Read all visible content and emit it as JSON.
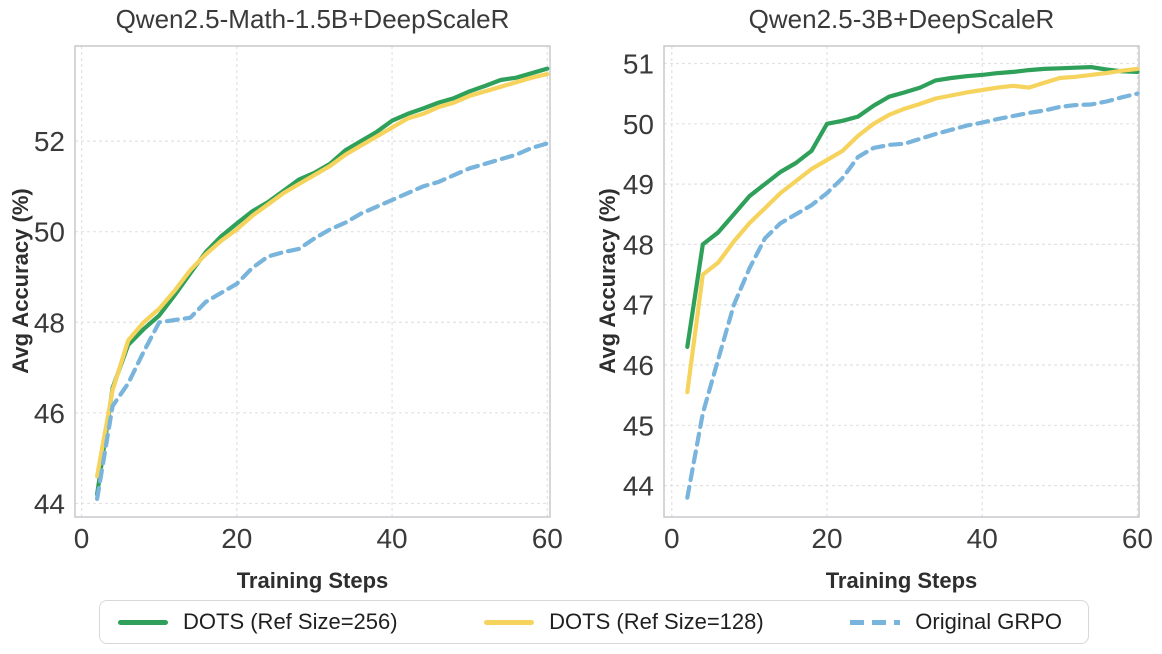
{
  "legend": {
    "items": [
      {
        "label": "DOTS (Ref Size=256)",
        "color": "#2fa05a",
        "style": "solid"
      },
      {
        "label": "DOTS (Ref Size=128)",
        "color": "#f6d35c",
        "style": "solid"
      },
      {
        "label": "Original GRPO",
        "color": "#78b4dc",
        "style": "dashed"
      }
    ]
  },
  "chart_data": [
    {
      "type": "line",
      "title": "Qwen2.5-Math-1.5B+DeepScaleR",
      "xlabel": "Training Steps",
      "ylabel": "Avg Accuracy (%)",
      "grid": true,
      "legend_position": "bottom",
      "xlim": [
        -0.85,
        60.35
      ],
      "ylim": [
        43.7,
        54.1
      ],
      "xticks": [
        0,
        20,
        40,
        60
      ],
      "yticks": [
        44,
        46,
        48,
        50,
        52
      ],
      "x": [
        2,
        4,
        6,
        8,
        10,
        12,
        14,
        16,
        18,
        20,
        22,
        24,
        26,
        28,
        30,
        32,
        34,
        36,
        38,
        40,
        42,
        44,
        46,
        48,
        50,
        52,
        54,
        56,
        58,
        60
      ],
      "series": [
        {
          "id": "dots-ref-256",
          "name": "DOTS (Ref Size=256)",
          "color": "#2fa05a",
          "dash": null,
          "values": [
            44.2,
            46.55,
            47.5,
            47.85,
            48.15,
            48.6,
            49.08,
            49.55,
            49.9,
            50.18,
            50.45,
            50.65,
            50.9,
            51.15,
            51.3,
            51.5,
            51.8,
            52.0,
            52.2,
            52.45,
            52.6,
            52.72,
            52.85,
            52.95,
            53.1,
            53.22,
            53.35,
            53.4,
            53.5,
            53.6
          ]
        },
        {
          "id": "dots-ref-128",
          "name": "DOTS (Ref Size=128)",
          "color": "#f6d35c",
          "dash": null,
          "values": [
            44.6,
            46.5,
            47.6,
            48.0,
            48.3,
            48.7,
            49.15,
            49.5,
            49.8,
            50.05,
            50.35,
            50.6,
            50.85,
            51.05,
            51.25,
            51.45,
            51.7,
            51.9,
            52.1,
            52.3,
            52.5,
            52.6,
            52.75,
            52.85,
            53.0,
            53.1,
            53.2,
            53.3,
            53.4,
            53.48
          ]
        },
        {
          "id": "original-grpo",
          "name": "Original GRPO",
          "color": "#78b4dc",
          "dash": [
            11,
            7
          ],
          "values": [
            44.1,
            46.15,
            46.65,
            47.35,
            48.0,
            48.05,
            48.1,
            48.45,
            48.65,
            48.85,
            49.2,
            49.45,
            49.55,
            49.62,
            49.85,
            50.05,
            50.2,
            50.4,
            50.55,
            50.7,
            50.85,
            51.0,
            51.1,
            51.25,
            51.4,
            51.5,
            51.6,
            51.7,
            51.85,
            51.95
          ]
        }
      ]
    },
    {
      "type": "line",
      "title": "Qwen2.5-3B+DeepScaleR",
      "xlabel": "Training Steps",
      "ylabel": "Avg Accuracy (%)",
      "grid": true,
      "legend_position": "bottom",
      "xlim": [
        -1.0,
        60.2
      ],
      "ylim": [
        43.48,
        51.29
      ],
      "xticks": [
        0,
        20,
        40,
        60
      ],
      "yticks": [
        44,
        45,
        46,
        47,
        48,
        49,
        50,
        51
      ],
      "x": [
        2,
        4,
        6,
        8,
        10,
        12,
        14,
        16,
        18,
        20,
        22,
        24,
        26,
        28,
        30,
        32,
        34,
        36,
        38,
        40,
        42,
        44,
        46,
        48,
        50,
        52,
        54,
        56,
        58,
        60
      ],
      "series": [
        {
          "id": "dots-ref-256",
          "name": "DOTS (Ref Size=256)",
          "color": "#2fa05a",
          "dash": null,
          "values": [
            46.3,
            48.0,
            48.2,
            48.5,
            48.8,
            49.0,
            49.2,
            49.35,
            49.55,
            50.0,
            50.05,
            50.12,
            50.3,
            50.45,
            50.52,
            50.6,
            50.72,
            50.76,
            50.79,
            50.81,
            50.84,
            50.86,
            50.89,
            50.91,
            50.92,
            50.93,
            50.94,
            50.9,
            50.87,
            50.86
          ]
        },
        {
          "id": "dots-ref-128",
          "name": "DOTS (Ref Size=128)",
          "color": "#f6d35c",
          "dash": null,
          "values": [
            45.55,
            47.5,
            47.7,
            48.05,
            48.35,
            48.6,
            48.85,
            49.05,
            49.25,
            49.4,
            49.55,
            49.8,
            50.0,
            50.15,
            50.25,
            50.33,
            50.42,
            50.47,
            50.52,
            50.56,
            50.6,
            50.63,
            50.6,
            50.68,
            50.76,
            50.78,
            50.81,
            50.84,
            50.88,
            50.91
          ]
        },
        {
          "id": "original-grpo",
          "name": "Original GRPO",
          "color": "#78b4dc",
          "dash": [
            11,
            7
          ],
          "values": [
            43.8,
            45.2,
            46.1,
            47.0,
            47.6,
            48.1,
            48.35,
            48.5,
            48.65,
            48.85,
            49.1,
            49.45,
            49.6,
            49.65,
            49.67,
            49.75,
            49.83,
            49.9,
            49.97,
            50.02,
            50.08,
            50.13,
            50.18,
            50.22,
            50.28,
            50.31,
            50.32,
            50.37,
            50.44,
            50.5
          ]
        }
      ]
    }
  ]
}
